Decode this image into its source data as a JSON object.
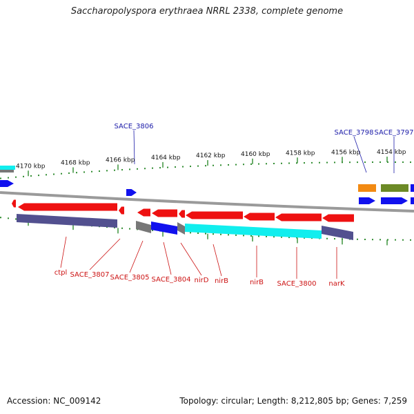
{
  "title": "Saccharopolyspora erythraea NRRL 2338, complete genome",
  "footer": {
    "accession": "Accession: NC_009142",
    "summary": "Topology: circular; Length: 8,212,805 bp; Genes: 7,259"
  },
  "colors": {
    "backbone": "#9a9a9a",
    "tick": "#2e8b2e",
    "reverse_gene": "#ee1111",
    "forward_gene": "#1111ee",
    "cds_purple": "#52508f",
    "cds_cyan": "#11eeee",
    "cds_grey": "#777777",
    "orange": "#f28a12",
    "olive": "#6c8a26",
    "forward_label": "#1a1aa8",
    "reverse_label": "#cc1111"
  },
  "kbp_labels": [
    "4170 kbp",
    "4168 kbp",
    "4166 kbp",
    "4164 kbp",
    "4162 kbp",
    "4160 kbp",
    "4158 kbp",
    "4156 kbp",
    "4154 kbp"
  ],
  "forward_labels": [
    "SACE_3806",
    "SACE_3798",
    "SACE_3797"
  ],
  "reverse_labels": [
    "ctpl",
    "SACE_3807",
    "SACE_3805",
    "SACE_3804",
    "nirD",
    "nirB",
    "nirB",
    "SACE_3800",
    "narK"
  ]
}
